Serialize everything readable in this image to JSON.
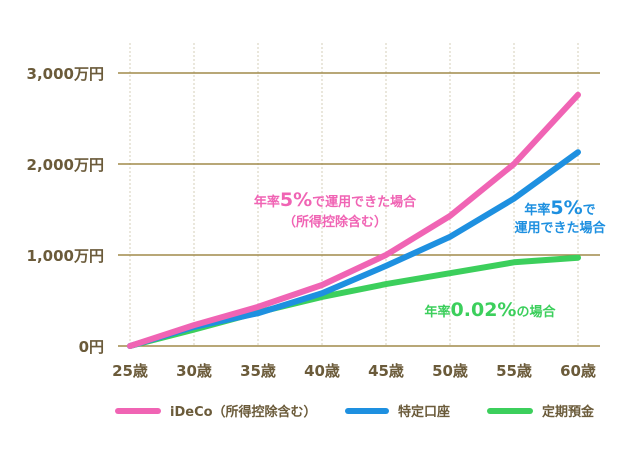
{
  "chart_data": {
    "type": "line",
    "x": [
      "25歳",
      "30歳",
      "35歳",
      "40歳",
      "45歳",
      "50歳",
      "55歳",
      "60歳"
    ],
    "y_ticks": [
      "0円",
      "1,000万円",
      "2,000万円",
      "3,000万円"
    ],
    "ylim": [
      0,
      3000
    ],
    "grid": true,
    "legend_position": "bottom",
    "series": [
      {
        "name": "iDeCo（所得控除含む）",
        "color": "#f064b4",
        "values": [
          0,
          230,
          430,
          670,
          1000,
          1430,
          2000,
          2760
        ]
      },
      {
        "name": "特定口座",
        "color": "#1e90e0",
        "values": [
          0,
          210,
          360,
          580,
          880,
          1200,
          1620,
          2130
        ]
      },
      {
        "name": "定期預金",
        "color": "#3ccf5c",
        "values": [
          0,
          180,
          370,
          540,
          680,
          800,
          920,
          970
        ]
      }
    ],
    "annotations": [
      {
        "series": 0,
        "parts": [
          "年率",
          "5%",
          "で運用できた場合"
        ],
        "line2": "（所得控除含む）",
        "color": "#f064b4"
      },
      {
        "series": 1,
        "parts": [
          "年率",
          "5%",
          "で"
        ],
        "line2": "運用できた場合",
        "color": "#1e90e0"
      },
      {
        "series": 2,
        "parts": [
          "年率",
          "0.02%",
          "の場合"
        ],
        "color": "#3ccf5c"
      }
    ]
  },
  "colors": {
    "axis_text": "#6b5b3a",
    "grid": "#a08a4a",
    "vgrid": "#d6cfb8"
  }
}
